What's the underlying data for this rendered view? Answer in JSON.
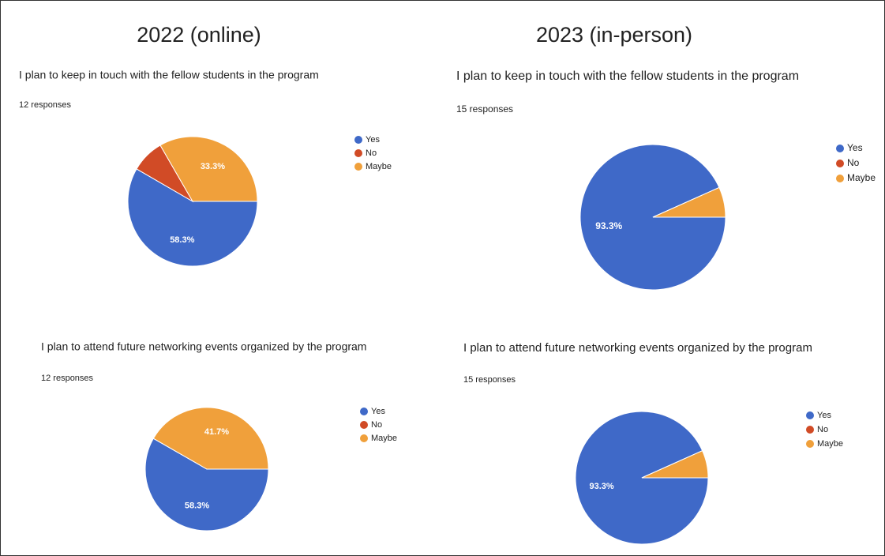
{
  "headings": [
    "2022 (online)",
    "2023 (in-person)"
  ],
  "chart_data": [
    {
      "type": "pie",
      "title": "I plan to keep in touch with the fellow students in the program",
      "subtitle": "12 responses",
      "categories": [
        "Yes",
        "No",
        "Maybe"
      ],
      "values": [
        58.3,
        8.3,
        33.3
      ],
      "value_labels": [
        "58.3%",
        null,
        "33.3%"
      ],
      "colors": [
        "#3f69c8",
        "#d14b26",
        "#f0a03b"
      ]
    },
    {
      "type": "pie",
      "title": "I plan to keep in touch with the fellow students in the program",
      "subtitle": "15 responses",
      "categories": [
        "Yes",
        "No",
        "Maybe"
      ],
      "values": [
        93.3,
        0,
        6.7
      ],
      "value_labels": [
        "93.3%",
        null,
        null
      ],
      "colors": [
        "#3f69c8",
        "#d14b26",
        "#f0a03b"
      ]
    },
    {
      "type": "pie",
      "title": "I plan to attend future networking events organized by the program",
      "subtitle": "12 responses",
      "categories": [
        "Yes",
        "No",
        "Maybe"
      ],
      "values": [
        58.3,
        0,
        41.7
      ],
      "value_labels": [
        "58.3%",
        null,
        "41.7%"
      ],
      "colors": [
        "#3f69c8",
        "#d14b26",
        "#f0a03b"
      ]
    },
    {
      "type": "pie",
      "title": "I plan to attend future networking events organized by the program",
      "subtitle": "15 responses",
      "categories": [
        "Yes",
        "No",
        "Maybe"
      ],
      "values": [
        93.3,
        0,
        6.7
      ],
      "value_labels": [
        "93.3%",
        null,
        null
      ],
      "colors": [
        "#3f69c8",
        "#d14b26",
        "#f0a03b"
      ]
    }
  ]
}
